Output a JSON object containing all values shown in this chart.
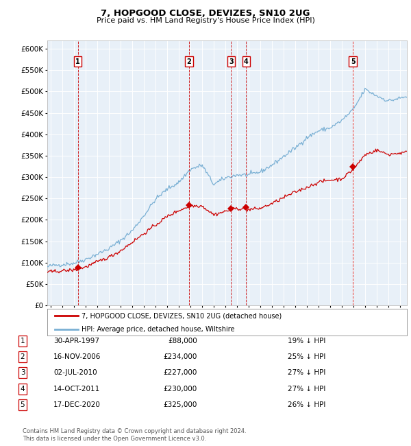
{
  "title": "7, HOPGOOD CLOSE, DEVIZES, SN10 2UG",
  "subtitle": "Price paid vs. HM Land Registry's House Price Index (HPI)",
  "hpi_color": "#7ab0d4",
  "price_color": "#cc0000",
  "plot_bg": "#e8f0f8",
  "ylim": [
    0,
    620000
  ],
  "yticks": [
    0,
    50000,
    100000,
    150000,
    200000,
    250000,
    300000,
    350000,
    400000,
    450000,
    500000,
    550000,
    600000
  ],
  "xlim_start": 1994.7,
  "xlim_end": 2025.6,
  "sales": [
    {
      "num": 1,
      "year": 1997.33,
      "price": 88000,
      "label": "1"
    },
    {
      "num": 2,
      "year": 2006.88,
      "price": 234000,
      "label": "2"
    },
    {
      "num": 3,
      "year": 2010.5,
      "price": 227000,
      "label": "3"
    },
    {
      "num": 4,
      "year": 2011.79,
      "price": 230000,
      "label": "4"
    },
    {
      "num": 5,
      "year": 2020.96,
      "price": 325000,
      "label": "5"
    }
  ],
  "legend_line1": "7, HOPGOOD CLOSE, DEVIZES, SN10 2UG (detached house)",
  "legend_line2": "HPI: Average price, detached house, Wiltshire",
  "table": [
    {
      "num": "1",
      "date": "30-APR-1997",
      "price": "£88,000",
      "pct": "19% ↓ HPI"
    },
    {
      "num": "2",
      "date": "16-NOV-2006",
      "price": "£234,000",
      "pct": "25% ↓ HPI"
    },
    {
      "num": "3",
      "date": "02-JUL-2010",
      "price": "£227,000",
      "pct": "27% ↓ HPI"
    },
    {
      "num": "4",
      "date": "14-OCT-2011",
      "price": "£230,000",
      "pct": "27% ↓ HPI"
    },
    {
      "num": "5",
      "date": "17-DEC-2020",
      "price": "£325,000",
      "pct": "26% ↓ HPI"
    }
  ],
  "footer": "Contains HM Land Registry data © Crown copyright and database right 2024.\nThis data is licensed under the Open Government Licence v3.0."
}
